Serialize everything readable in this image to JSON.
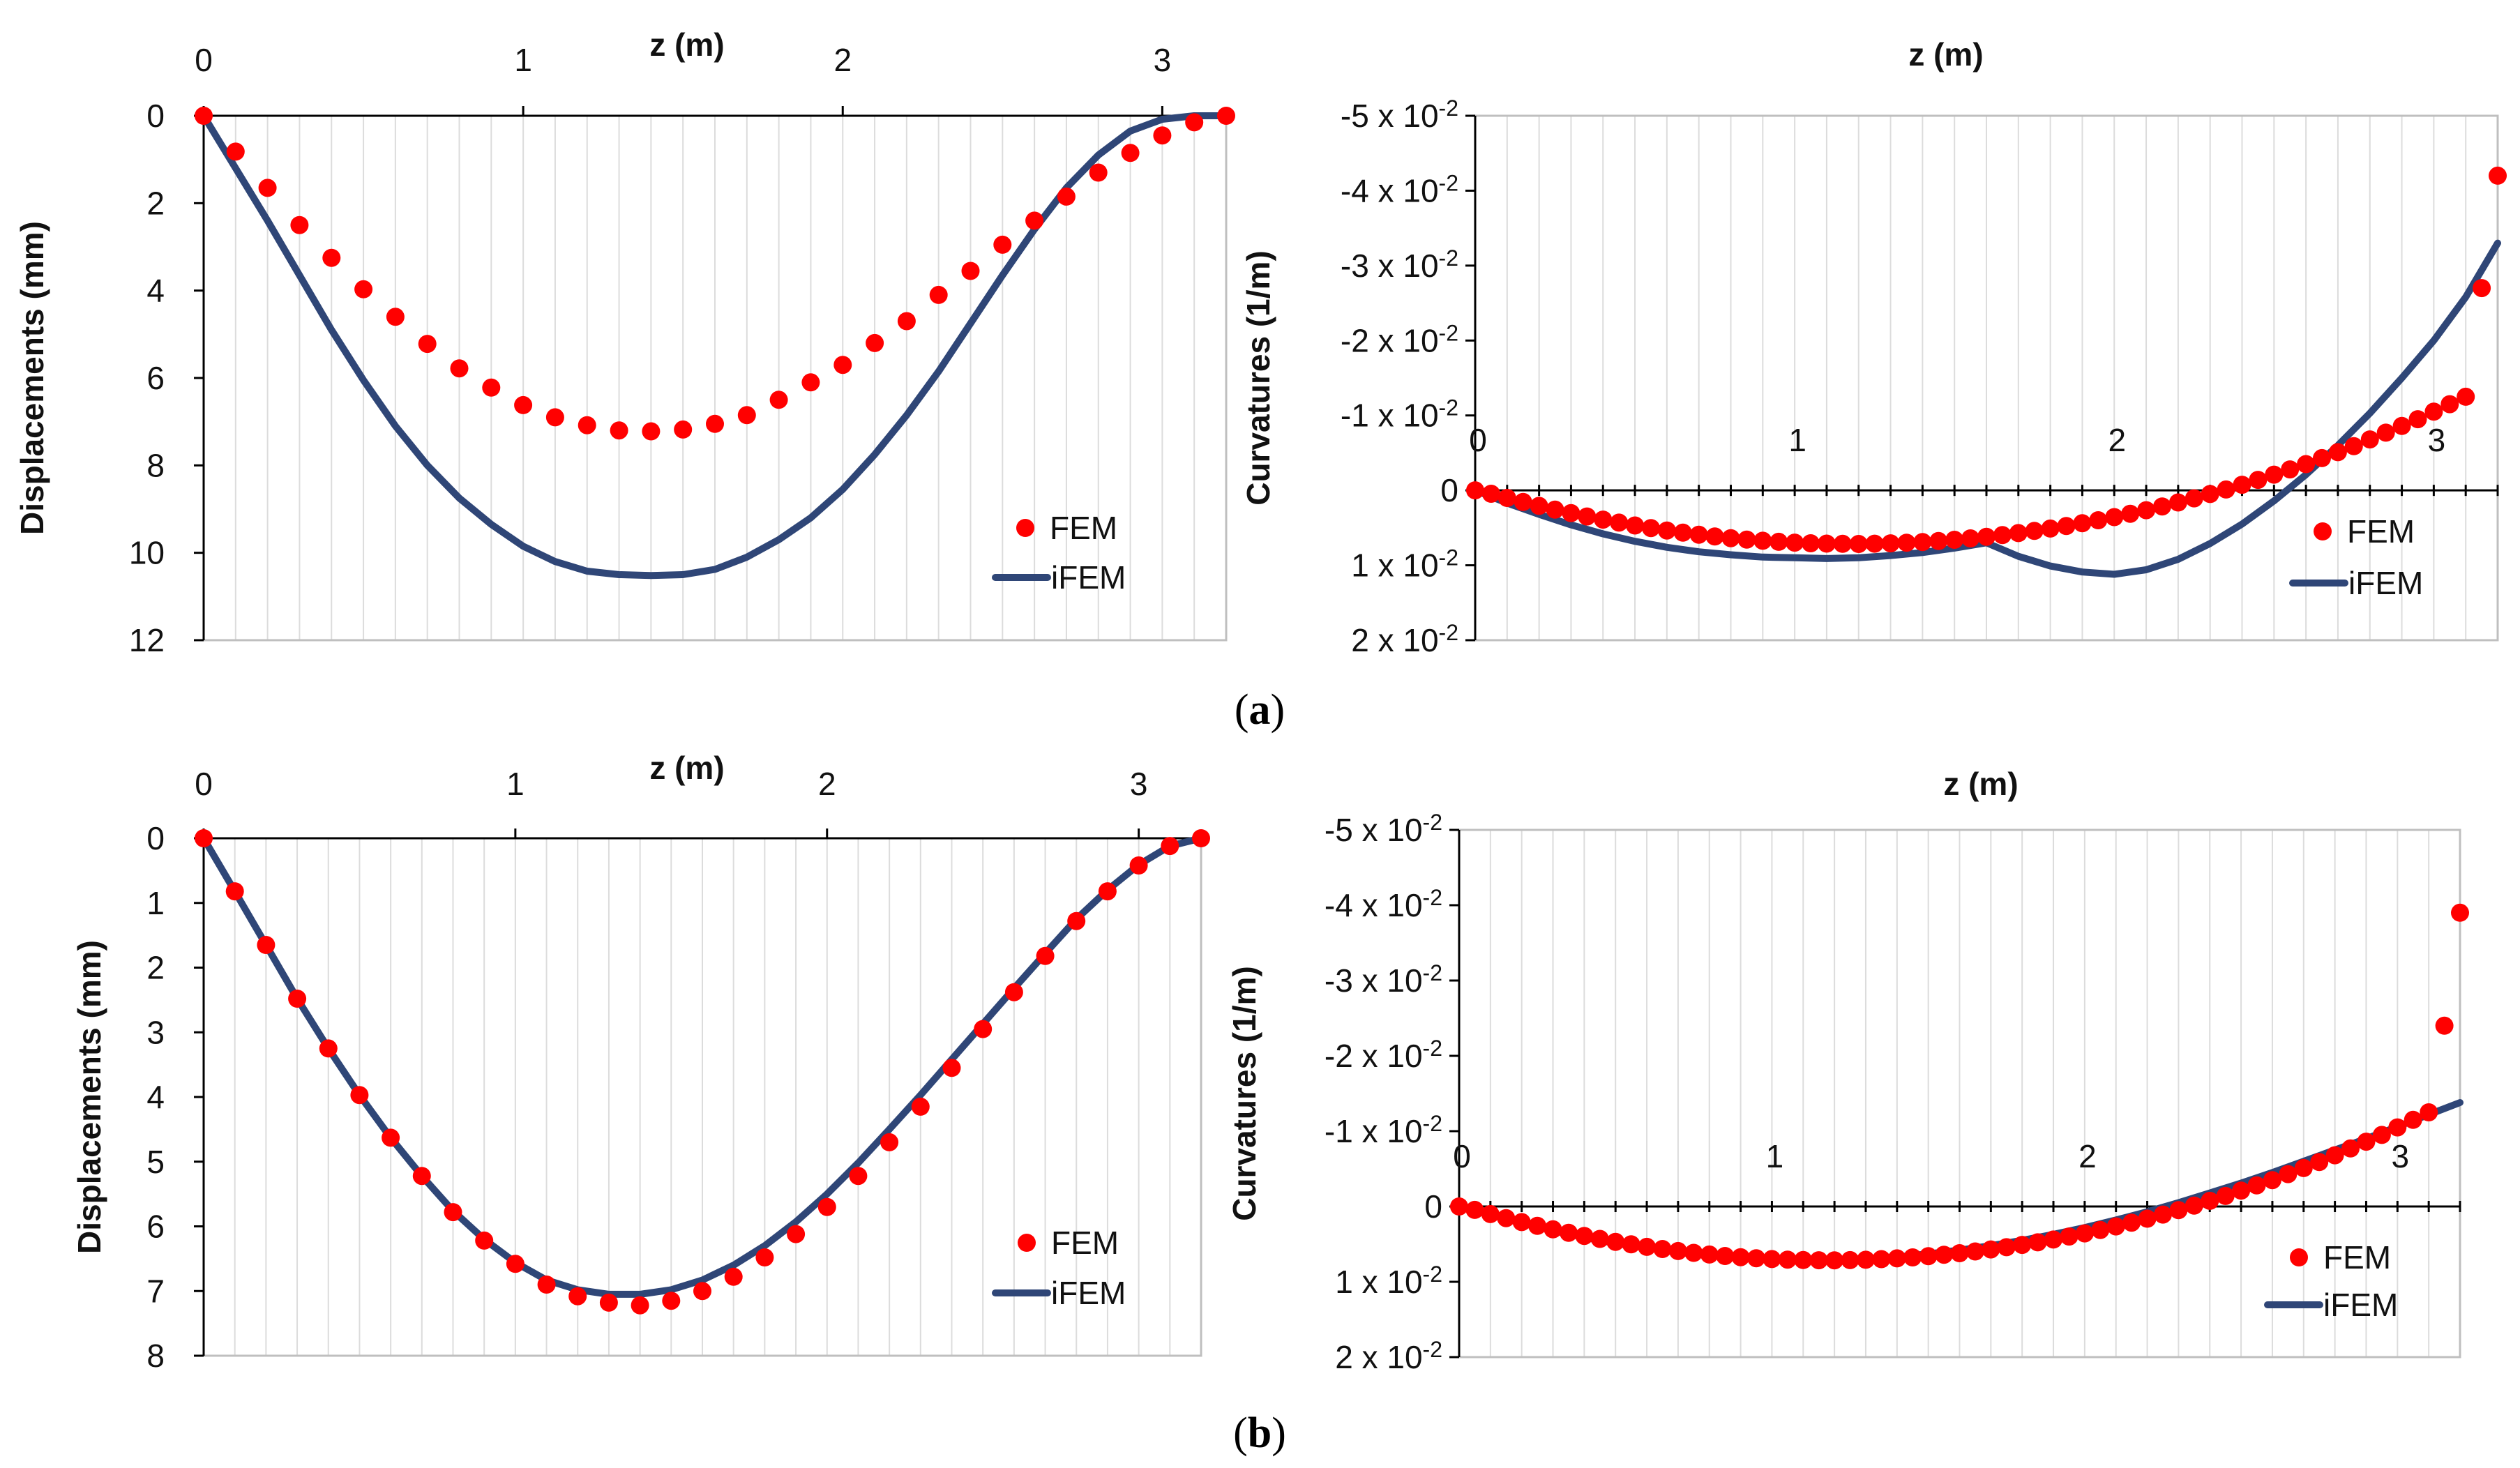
{
  "panel_labels": {
    "a": {
      "open": "(",
      "letter": "a",
      "close": ")"
    },
    "b": {
      "open": "(",
      "letter": "b",
      "close": ")"
    }
  },
  "colors": {
    "fem": "#ff0000",
    "ifem": "#2f4677"
  },
  "chart_data": [
    {
      "id": "a_disp",
      "type": "line",
      "panel": "a",
      "title": "",
      "xlabel": "z (m)",
      "ylabel": "Displacements (mm)",
      "xlim": [
        0,
        3.2
      ],
      "ylim": [
        0,
        12
      ],
      "y_inverted": true,
      "x_ticks": [
        "0",
        "1",
        "2",
        "3"
      ],
      "y_ticks": [
        "0",
        "2",
        "4",
        "6",
        "8",
        "10",
        "12"
      ],
      "legend": {
        "position": "bottom-right",
        "entries": [
          "FEM",
          "iFEM"
        ]
      },
      "series": [
        {
          "name": "FEM",
          "style": "markers",
          "x": [
            0,
            0.1,
            0.2,
            0.3,
            0.4,
            0.5,
            0.6,
            0.7,
            0.8,
            0.9,
            1.0,
            1.1,
            1.2,
            1.3,
            1.4,
            1.5,
            1.6,
            1.7,
            1.8,
            1.9,
            2.0,
            2.1,
            2.2,
            2.3,
            2.4,
            2.5,
            2.6,
            2.7,
            2.8,
            2.9,
            3.0,
            3.1,
            3.2
          ],
          "y": [
            0,
            0.82,
            1.65,
            2.5,
            3.25,
            3.97,
            4.6,
            5.22,
            5.78,
            6.22,
            6.62,
            6.9,
            7.08,
            7.2,
            7.22,
            7.18,
            7.05,
            6.85,
            6.5,
            6.1,
            5.7,
            5.2,
            4.7,
            4.1,
            3.55,
            2.95,
            2.4,
            1.85,
            1.3,
            0.85,
            0.45,
            0.15,
            0
          ]
        },
        {
          "name": "iFEM",
          "style": "line",
          "x": [
            0,
            0.1,
            0.2,
            0.3,
            0.4,
            0.5,
            0.6,
            0.7,
            0.8,
            0.9,
            1.0,
            1.1,
            1.2,
            1.3,
            1.4,
            1.5,
            1.6,
            1.7,
            1.8,
            1.9,
            2.0,
            2.1,
            2.2,
            2.3,
            2.4,
            2.5,
            2.6,
            2.7,
            2.8,
            2.9,
            3.0,
            3.1,
            3.2
          ],
          "y": [
            0,
            1.2,
            2.4,
            3.65,
            4.9,
            6.05,
            7.1,
            8.0,
            8.75,
            9.35,
            9.85,
            10.2,
            10.42,
            10.5,
            10.52,
            10.5,
            10.38,
            10.1,
            9.7,
            9.2,
            8.55,
            7.75,
            6.85,
            5.85,
            4.75,
            3.65,
            2.6,
            1.65,
            0.9,
            0.35,
            0.08,
            0,
            0
          ]
        }
      ]
    },
    {
      "id": "a_curv",
      "type": "line",
      "panel": "a",
      "title": "",
      "xlabel": "z (m)",
      "ylabel": "Curvatures (1/m)",
      "xlim": [
        0,
        3.2
      ],
      "ylim": [
        -0.05,
        0.02
      ],
      "y_inverted": true,
      "x_ticks": [
        "0",
        "1",
        "2",
        "3"
      ],
      "y_ticks": [
        {
          "mant": "-5 x 10",
          "exp": "-2"
        },
        {
          "mant": "-4 x 10",
          "exp": "-2"
        },
        {
          "mant": "-3 x 10",
          "exp": "-2"
        },
        {
          "mant": "-2 x 10",
          "exp": "-2"
        },
        {
          "mant": "-1 x 10",
          "exp": "-2"
        },
        {
          "mant": "0",
          "exp": ""
        },
        {
          "mant": "1 x 10",
          "exp": "-2"
        },
        {
          "mant": "2 x 10",
          "exp": "-2"
        }
      ],
      "legend": {
        "position": "bottom-right",
        "entries": [
          "FEM",
          "iFEM"
        ]
      },
      "series": [
        {
          "name": "FEM",
          "style": "markers",
          "x": [
            0,
            0.05,
            0.1,
            0.15,
            0.2,
            0.25,
            0.3,
            0.35,
            0.4,
            0.45,
            0.5,
            0.55,
            0.6,
            0.65,
            0.7,
            0.75,
            0.8,
            0.85,
            0.9,
            0.95,
            1.0,
            1.05,
            1.1,
            1.15,
            1.2,
            1.25,
            1.3,
            1.35,
            1.4,
            1.45,
            1.5,
            1.55,
            1.6,
            1.65,
            1.7,
            1.75,
            1.8,
            1.85,
            1.9,
            1.95,
            2.0,
            2.05,
            2.1,
            2.15,
            2.2,
            2.25,
            2.3,
            2.35,
            2.4,
            2.45,
            2.5,
            2.55,
            2.6,
            2.65,
            2.7,
            2.75,
            2.8,
            2.85,
            2.9,
            2.95,
            3.0,
            3.05,
            3.1,
            3.15,
            3.2
          ],
          "y": [
            0.0,
            0.00045,
            0.00101,
            0.00155,
            0.00207,
            0.00257,
            0.00304,
            0.00349,
            0.00391,
            0.00431,
            0.00469,
            0.00503,
            0.00536,
            0.00565,
            0.00592,
            0.00616,
            0.00638,
            0.00657,
            0.00673,
            0.00687,
            0.00698,
            0.00706,
            0.00711,
            0.00714,
            0.00715,
            0.00712,
            0.00707,
            0.00699,
            0.00689,
            0.00676,
            0.0066,
            0.00641,
            0.0062,
            0.00597,
            0.0057,
            0.00541,
            0.0051,
            0.00476,
            0.00439,
            0.00399,
            0.00357,
            0.00312,
            0.00265,
            0.00215,
            0.00162,
            0.00107,
            0.00049,
            -0.00012,
            -0.00075,
            -0.0014,
            -0.0021,
            -0.0028,
            -0.0035,
            -0.0043,
            -0.0051,
            -0.0059,
            -0.0068,
            -0.0077,
            -0.0086,
            -0.0095,
            -0.0105,
            -0.0115,
            -0.0125,
            -0.027,
            -0.042
          ]
        },
        {
          "name": "iFEM",
          "style": "line",
          "x": [
            0,
            0.1,
            0.2,
            0.3,
            0.4,
            0.5,
            0.6,
            0.7,
            0.8,
            0.9,
            1.0,
            1.1,
            1.2,
            1.3,
            1.4,
            1.5,
            1.6,
            1.7,
            1.8,
            1.9,
            2.0,
            2.1,
            2.2,
            2.3,
            2.4,
            2.5,
            2.6,
            2.7,
            2.8,
            2.9,
            3.0,
            3.1,
            3.2
          ],
          "y": [
            0,
            0.0017,
            0.0032,
            0.0046,
            0.0058,
            0.0068,
            0.0076,
            0.0082,
            0.0086,
            0.0089,
            0.009,
            0.0091,
            0.009,
            0.0087,
            0.0083,
            0.0077,
            0.007,
            0.0088,
            0.0101,
            0.0109,
            0.0112,
            0.0106,
            0.0092,
            0.0071,
            0.0045,
            0.0014,
            -0.0021,
            -0.006,
            -0.0103,
            -0.015,
            -0.02,
            -0.0258,
            -0.033
          ]
        }
      ]
    },
    {
      "id": "b_disp",
      "type": "line",
      "panel": "b",
      "title": "",
      "xlabel": "z (m)",
      "ylabel": "Displacements (mm)",
      "xlim": [
        0,
        3.2
      ],
      "ylim": [
        0,
        8
      ],
      "y_inverted": true,
      "x_ticks": [
        "0",
        "1",
        "2",
        "3"
      ],
      "y_ticks": [
        "0",
        "1",
        "2",
        "3",
        "4",
        "5",
        "6",
        "7",
        "8"
      ],
      "legend": {
        "position": "bottom-right",
        "entries": [
          "FEM",
          "iFEM"
        ]
      },
      "series": [
        {
          "name": "FEM",
          "style": "markers",
          "x": [
            0,
            0.1,
            0.2,
            0.3,
            0.4,
            0.5,
            0.6,
            0.7,
            0.8,
            0.9,
            1.0,
            1.1,
            1.2,
            1.3,
            1.4,
            1.5,
            1.6,
            1.7,
            1.8,
            1.9,
            2.0,
            2.1,
            2.2,
            2.3,
            2.4,
            2.5,
            2.6,
            2.7,
            2.8,
            2.9,
            3.0,
            3.1,
            3.2
          ],
          "y": [
            0,
            0.82,
            1.65,
            2.48,
            3.25,
            3.97,
            4.63,
            5.22,
            5.78,
            6.22,
            6.58,
            6.9,
            7.08,
            7.18,
            7.22,
            7.15,
            7.0,
            6.78,
            6.48,
            6.12,
            5.7,
            5.22,
            4.7,
            4.15,
            3.55,
            2.95,
            2.38,
            1.82,
            1.28,
            0.82,
            0.42,
            0.12,
            0
          ]
        },
        {
          "name": "iFEM",
          "style": "line",
          "x": [
            0,
            0.1,
            0.2,
            0.3,
            0.4,
            0.5,
            0.6,
            0.7,
            0.8,
            0.9,
            1.0,
            1.1,
            1.2,
            1.3,
            1.4,
            1.5,
            1.6,
            1.7,
            1.8,
            1.9,
            2.0,
            2.1,
            2.2,
            2.3,
            2.4,
            2.5,
            2.6,
            2.7,
            2.8,
            2.9,
            3.0,
            3.1,
            3.2
          ],
          "y": [
            0,
            0.82,
            1.65,
            2.48,
            3.25,
            3.97,
            4.63,
            5.22,
            5.76,
            6.2,
            6.56,
            6.83,
            6.98,
            7.05,
            7.05,
            6.98,
            6.83,
            6.6,
            6.3,
            5.93,
            5.5,
            5.02,
            4.5,
            3.97,
            3.42,
            2.87,
            2.32,
            1.78,
            1.25,
            0.8,
            0.41,
            0.12,
            0
          ]
        }
      ]
    },
    {
      "id": "b_curv",
      "type": "line",
      "panel": "b",
      "title": "",
      "xlabel": "z (m)",
      "ylabel": "Curvatures (1/m)",
      "xlim": [
        0,
        3.2
      ],
      "ylim": [
        -0.05,
        0.02
      ],
      "y_inverted": true,
      "x_ticks": [
        "0",
        "1",
        "2",
        "3"
      ],
      "y_ticks": [
        {
          "mant": "-5 x 10",
          "exp": "-2"
        },
        {
          "mant": "-4 x 10",
          "exp": "-2"
        },
        {
          "mant": "-3 x 10",
          "exp": "-2"
        },
        {
          "mant": "-2 x 10",
          "exp": "-2"
        },
        {
          "mant": "-1 x 10",
          "exp": "-2"
        },
        {
          "mant": "0",
          "exp": ""
        },
        {
          "mant": "1 x 10",
          "exp": "-2"
        },
        {
          "mant": "2 x 10",
          "exp": "-2"
        }
      ],
      "legend": {
        "position": "bottom-right",
        "entries": [
          "FEM",
          "iFEM"
        ]
      },
      "series": [
        {
          "name": "FEM",
          "style": "markers",
          "x": [
            0,
            0.05,
            0.1,
            0.15,
            0.2,
            0.25,
            0.3,
            0.35,
            0.4,
            0.45,
            0.5,
            0.55,
            0.6,
            0.65,
            0.7,
            0.75,
            0.8,
            0.85,
            0.9,
            0.95,
            1.0,
            1.05,
            1.1,
            1.15,
            1.2,
            1.25,
            1.3,
            1.35,
            1.4,
            1.45,
            1.5,
            1.55,
            1.6,
            1.65,
            1.7,
            1.75,
            1.8,
            1.85,
            1.9,
            1.95,
            2.0,
            2.05,
            2.1,
            2.15,
            2.2,
            2.25,
            2.3,
            2.35,
            2.4,
            2.45,
            2.5,
            2.55,
            2.6,
            2.65,
            2.7,
            2.75,
            2.8,
            2.85,
            2.9,
            2.95,
            3.0,
            3.05,
            3.1,
            3.15,
            3.2
          ],
          "y": [
            0.0,
            0.00045,
            0.00101,
            0.00155,
            0.00207,
            0.00257,
            0.00304,
            0.00349,
            0.00391,
            0.00431,
            0.00469,
            0.00503,
            0.00536,
            0.00565,
            0.00592,
            0.00616,
            0.00638,
            0.00657,
            0.00673,
            0.00687,
            0.00698,
            0.00706,
            0.00711,
            0.00714,
            0.00715,
            0.00712,
            0.00707,
            0.00699,
            0.00689,
            0.00676,
            0.0066,
            0.00641,
            0.0062,
            0.00597,
            0.0057,
            0.00541,
            0.0051,
            0.00476,
            0.00439,
            0.00399,
            0.00357,
            0.00312,
            0.00265,
            0.00215,
            0.00162,
            0.00107,
            0.00049,
            -0.00012,
            -0.00075,
            -0.0014,
            -0.0021,
            -0.0028,
            -0.0035,
            -0.0043,
            -0.0051,
            -0.0059,
            -0.0068,
            -0.0077,
            -0.0086,
            -0.0095,
            -0.0105,
            -0.0115,
            -0.0125,
            -0.024,
            -0.039
          ]
        },
        {
          "name": "iFEM",
          "style": "line",
          "x": [
            0,
            0.1,
            0.2,
            0.3,
            0.4,
            0.5,
            0.6,
            0.7,
            0.8,
            0.9,
            1.0,
            1.1,
            1.2,
            1.3,
            1.4,
            1.5,
            1.6,
            1.7,
            1.8,
            1.9,
            2.0,
            2.1,
            2.2,
            2.3,
            2.4,
            2.5,
            2.6,
            2.7,
            2.8,
            2.9,
            3.0,
            3.1,
            3.2
          ],
          "y": [
            0,
            0.0011,
            0.0022,
            0.0032,
            0.0041,
            0.0049,
            0.0055,
            0.0061,
            0.0065,
            0.0068,
            0.007,
            0.0071,
            0.0071,
            0.0069,
            0.0067,
            0.0063,
            0.0058,
            0.0052,
            0.0045,
            0.0037,
            0.0028,
            0.0018,
            0.0007,
            -0.0005,
            -0.0018,
            -0.0031,
            -0.0045,
            -0.006,
            -0.0075,
            -0.009,
            -0.0106,
            -0.0122,
            -0.0138
          ]
        }
      ]
    }
  ]
}
